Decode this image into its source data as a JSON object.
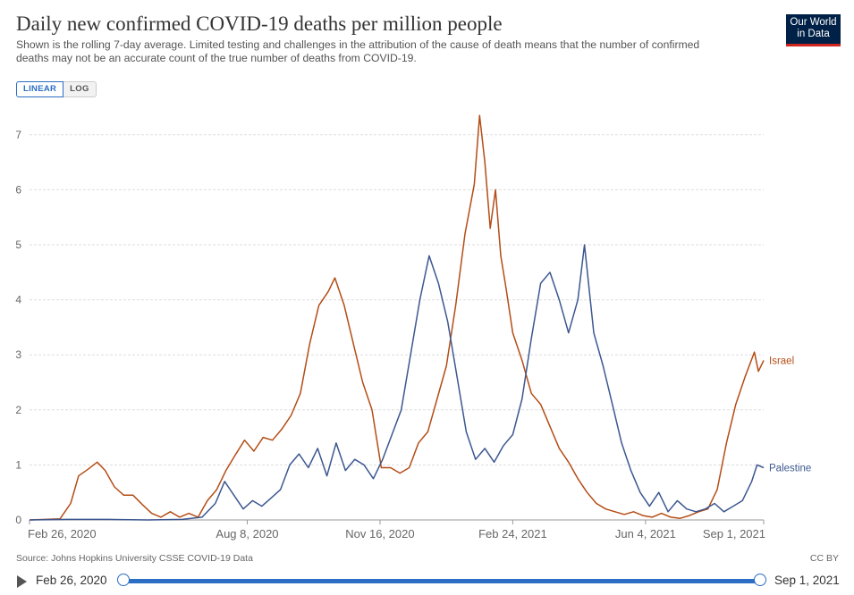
{
  "header": {
    "title": "Daily new confirmed COVID-19 deaths per million people",
    "subtitle": "Shown is the rolling 7-day average. Limited testing and challenges in the attribution of the cause of death means that the number of confirmed deaths may not be an accurate count of the true number of deaths from COVID-19.",
    "logo_line1": "Our World",
    "logo_line2": "in Data"
  },
  "toggle": {
    "linear_label": "LINEAR",
    "log_label": "LOG",
    "selected": "linear"
  },
  "footer": {
    "source": "Source: Johns Hopkins University CSSE COVID-19 Data",
    "license": "CC BY"
  },
  "timeline": {
    "start_label": "Feb 26, 2020",
    "end_label": "Sep 1, 2021"
  },
  "colors": {
    "israel": "#b44d16",
    "palestine": "#3c5790",
    "grid": "#dddddd",
    "accent": "#2b6ec4"
  },
  "chart_data": {
    "type": "line",
    "title": "Daily new confirmed COVID-19 deaths per million people",
    "xlabel": "",
    "ylabel": "",
    "x_start": "2020-02-26",
    "x_end": "2021-09-01",
    "ylim": [
      0,
      7.3
    ],
    "yticks": [
      "0",
      "1",
      "2",
      "3",
      "4",
      "5",
      "6",
      "7"
    ],
    "xticks": [
      "Feb 26, 2020",
      "Aug 8, 2020",
      "Nov 16, 2020",
      "Feb 24, 2021",
      "Jun 4, 2021",
      "Sep 1, 2021"
    ],
    "xtick_dates": [
      "2020-02-26",
      "2020-08-08",
      "2020-11-16",
      "2021-02-24",
      "2021-06-04",
      "2021-09-01"
    ],
    "grid": true,
    "legend": "line-end labels",
    "series": [
      {
        "name": "Israel",
        "color": "#b44d16",
        "points": [
          [
            "2020-02-26",
            0
          ],
          [
            "2020-03-20",
            0.02
          ],
          [
            "2020-03-28",
            0.3
          ],
          [
            "2020-04-03",
            0.8
          ],
          [
            "2020-04-10",
            0.92
          ],
          [
            "2020-04-17",
            1.05
          ],
          [
            "2020-04-23",
            0.9
          ],
          [
            "2020-04-30",
            0.6
          ],
          [
            "2020-05-07",
            0.45
          ],
          [
            "2020-05-14",
            0.45
          ],
          [
            "2020-05-21",
            0.28
          ],
          [
            "2020-05-28",
            0.12
          ],
          [
            "2020-06-04",
            0.05
          ],
          [
            "2020-06-11",
            0.15
          ],
          [
            "2020-06-18",
            0.05
          ],
          [
            "2020-06-25",
            0.12
          ],
          [
            "2020-07-02",
            0.05
          ],
          [
            "2020-07-09",
            0.35
          ],
          [
            "2020-07-16",
            0.55
          ],
          [
            "2020-07-23",
            0.9
          ],
          [
            "2020-07-30",
            1.18
          ],
          [
            "2020-08-06",
            1.45
          ],
          [
            "2020-08-13",
            1.25
          ],
          [
            "2020-08-20",
            1.5
          ],
          [
            "2020-08-27",
            1.45
          ],
          [
            "2020-09-03",
            1.65
          ],
          [
            "2020-09-10",
            1.9
          ],
          [
            "2020-09-17",
            2.3
          ],
          [
            "2020-09-24",
            3.2
          ],
          [
            "2020-10-01",
            3.9
          ],
          [
            "2020-10-08",
            4.15
          ],
          [
            "2020-10-13",
            4.4
          ],
          [
            "2020-10-20",
            3.9
          ],
          [
            "2020-10-27",
            3.2
          ],
          [
            "2020-11-03",
            2.5
          ],
          [
            "2020-11-10",
            2.0
          ],
          [
            "2020-11-17",
            0.95
          ],
          [
            "2020-11-24",
            0.95
          ],
          [
            "2020-12-01",
            0.85
          ],
          [
            "2020-12-08",
            0.95
          ],
          [
            "2020-12-15",
            1.4
          ],
          [
            "2020-12-22",
            1.6
          ],
          [
            "2020-12-29",
            2.2
          ],
          [
            "2021-01-05",
            2.8
          ],
          [
            "2021-01-12",
            3.9
          ],
          [
            "2021-01-19",
            5.2
          ],
          [
            "2021-01-26",
            6.1
          ],
          [
            "2021-01-30",
            7.35
          ],
          [
            "2021-02-03",
            6.5
          ],
          [
            "2021-02-07",
            5.3
          ],
          [
            "2021-02-11",
            6.0
          ],
          [
            "2021-02-15",
            4.8
          ],
          [
            "2021-02-19",
            4.2
          ],
          [
            "2021-02-24",
            3.4
          ],
          [
            "2021-03-03",
            2.9
          ],
          [
            "2021-03-10",
            2.3
          ],
          [
            "2021-03-17",
            2.1
          ],
          [
            "2021-03-24",
            1.7
          ],
          [
            "2021-03-31",
            1.3
          ],
          [
            "2021-04-07",
            1.05
          ],
          [
            "2021-04-14",
            0.75
          ],
          [
            "2021-04-21",
            0.5
          ],
          [
            "2021-04-28",
            0.3
          ],
          [
            "2021-05-05",
            0.2
          ],
          [
            "2021-05-12",
            0.15
          ],
          [
            "2021-05-19",
            0.1
          ],
          [
            "2021-05-26",
            0.15
          ],
          [
            "2021-06-02",
            0.08
          ],
          [
            "2021-06-09",
            0.05
          ],
          [
            "2021-06-16",
            0.12
          ],
          [
            "2021-06-23",
            0.05
          ],
          [
            "2021-06-30",
            0.03
          ],
          [
            "2021-07-07",
            0.08
          ],
          [
            "2021-07-14",
            0.15
          ],
          [
            "2021-07-21",
            0.2
          ],
          [
            "2021-07-28",
            0.55
          ],
          [
            "2021-08-04",
            1.4
          ],
          [
            "2021-08-11",
            2.1
          ],
          [
            "2021-08-18",
            2.6
          ],
          [
            "2021-08-25",
            3.05
          ],
          [
            "2021-08-28",
            2.7
          ],
          [
            "2021-09-01",
            2.9
          ]
        ]
      },
      {
        "name": "Palestine",
        "color": "#3c5790",
        "points": [
          [
            "2020-02-26",
            0
          ],
          [
            "2020-03-25",
            0.01
          ],
          [
            "2020-04-25",
            0.01
          ],
          [
            "2020-05-25",
            0.0
          ],
          [
            "2020-06-20",
            0.01
          ],
          [
            "2020-07-05",
            0.05
          ],
          [
            "2020-07-15",
            0.3
          ],
          [
            "2020-07-22",
            0.7
          ],
          [
            "2020-07-29",
            0.45
          ],
          [
            "2020-08-05",
            0.2
          ],
          [
            "2020-08-12",
            0.35
          ],
          [
            "2020-08-19",
            0.25
          ],
          [
            "2020-08-26",
            0.4
          ],
          [
            "2020-09-02",
            0.55
          ],
          [
            "2020-09-09",
            1.0
          ],
          [
            "2020-09-16",
            1.2
          ],
          [
            "2020-09-23",
            0.95
          ],
          [
            "2020-09-30",
            1.3
          ],
          [
            "2020-10-07",
            0.8
          ],
          [
            "2020-10-14",
            1.4
          ],
          [
            "2020-10-21",
            0.9
          ],
          [
            "2020-10-28",
            1.1
          ],
          [
            "2020-11-04",
            1.0
          ],
          [
            "2020-11-11",
            0.75
          ],
          [
            "2020-11-18",
            1.1
          ],
          [
            "2020-11-25",
            1.55
          ],
          [
            "2020-12-02",
            2.0
          ],
          [
            "2020-12-09",
            3.0
          ],
          [
            "2020-12-16",
            4.0
          ],
          [
            "2020-12-23",
            4.8
          ],
          [
            "2020-12-30",
            4.3
          ],
          [
            "2021-01-06",
            3.6
          ],
          [
            "2021-01-13",
            2.6
          ],
          [
            "2021-01-20",
            1.6
          ],
          [
            "2021-01-27",
            1.1
          ],
          [
            "2021-02-03",
            1.3
          ],
          [
            "2021-02-10",
            1.05
          ],
          [
            "2021-02-17",
            1.35
          ],
          [
            "2021-02-24",
            1.55
          ],
          [
            "2021-03-03",
            2.2
          ],
          [
            "2021-03-10",
            3.3
          ],
          [
            "2021-03-17",
            4.3
          ],
          [
            "2021-03-24",
            4.5
          ],
          [
            "2021-03-31",
            4.0
          ],
          [
            "2021-04-07",
            3.4
          ],
          [
            "2021-04-14",
            4.0
          ],
          [
            "2021-04-19",
            5.0
          ],
          [
            "2021-04-26",
            3.4
          ],
          [
            "2021-05-03",
            2.8
          ],
          [
            "2021-05-10",
            2.1
          ],
          [
            "2021-05-17",
            1.4
          ],
          [
            "2021-05-24",
            0.9
          ],
          [
            "2021-05-31",
            0.5
          ],
          [
            "2021-06-07",
            0.25
          ],
          [
            "2021-06-14",
            0.5
          ],
          [
            "2021-06-21",
            0.15
          ],
          [
            "2021-06-28",
            0.35
          ],
          [
            "2021-07-05",
            0.2
          ],
          [
            "2021-07-12",
            0.15
          ],
          [
            "2021-07-19",
            0.2
          ],
          [
            "2021-07-26",
            0.3
          ],
          [
            "2021-08-02",
            0.15
          ],
          [
            "2021-08-09",
            0.25
          ],
          [
            "2021-08-16",
            0.35
          ],
          [
            "2021-08-23",
            0.7
          ],
          [
            "2021-08-27",
            1.0
          ],
          [
            "2021-09-01",
            0.95
          ]
        ]
      }
    ]
  }
}
